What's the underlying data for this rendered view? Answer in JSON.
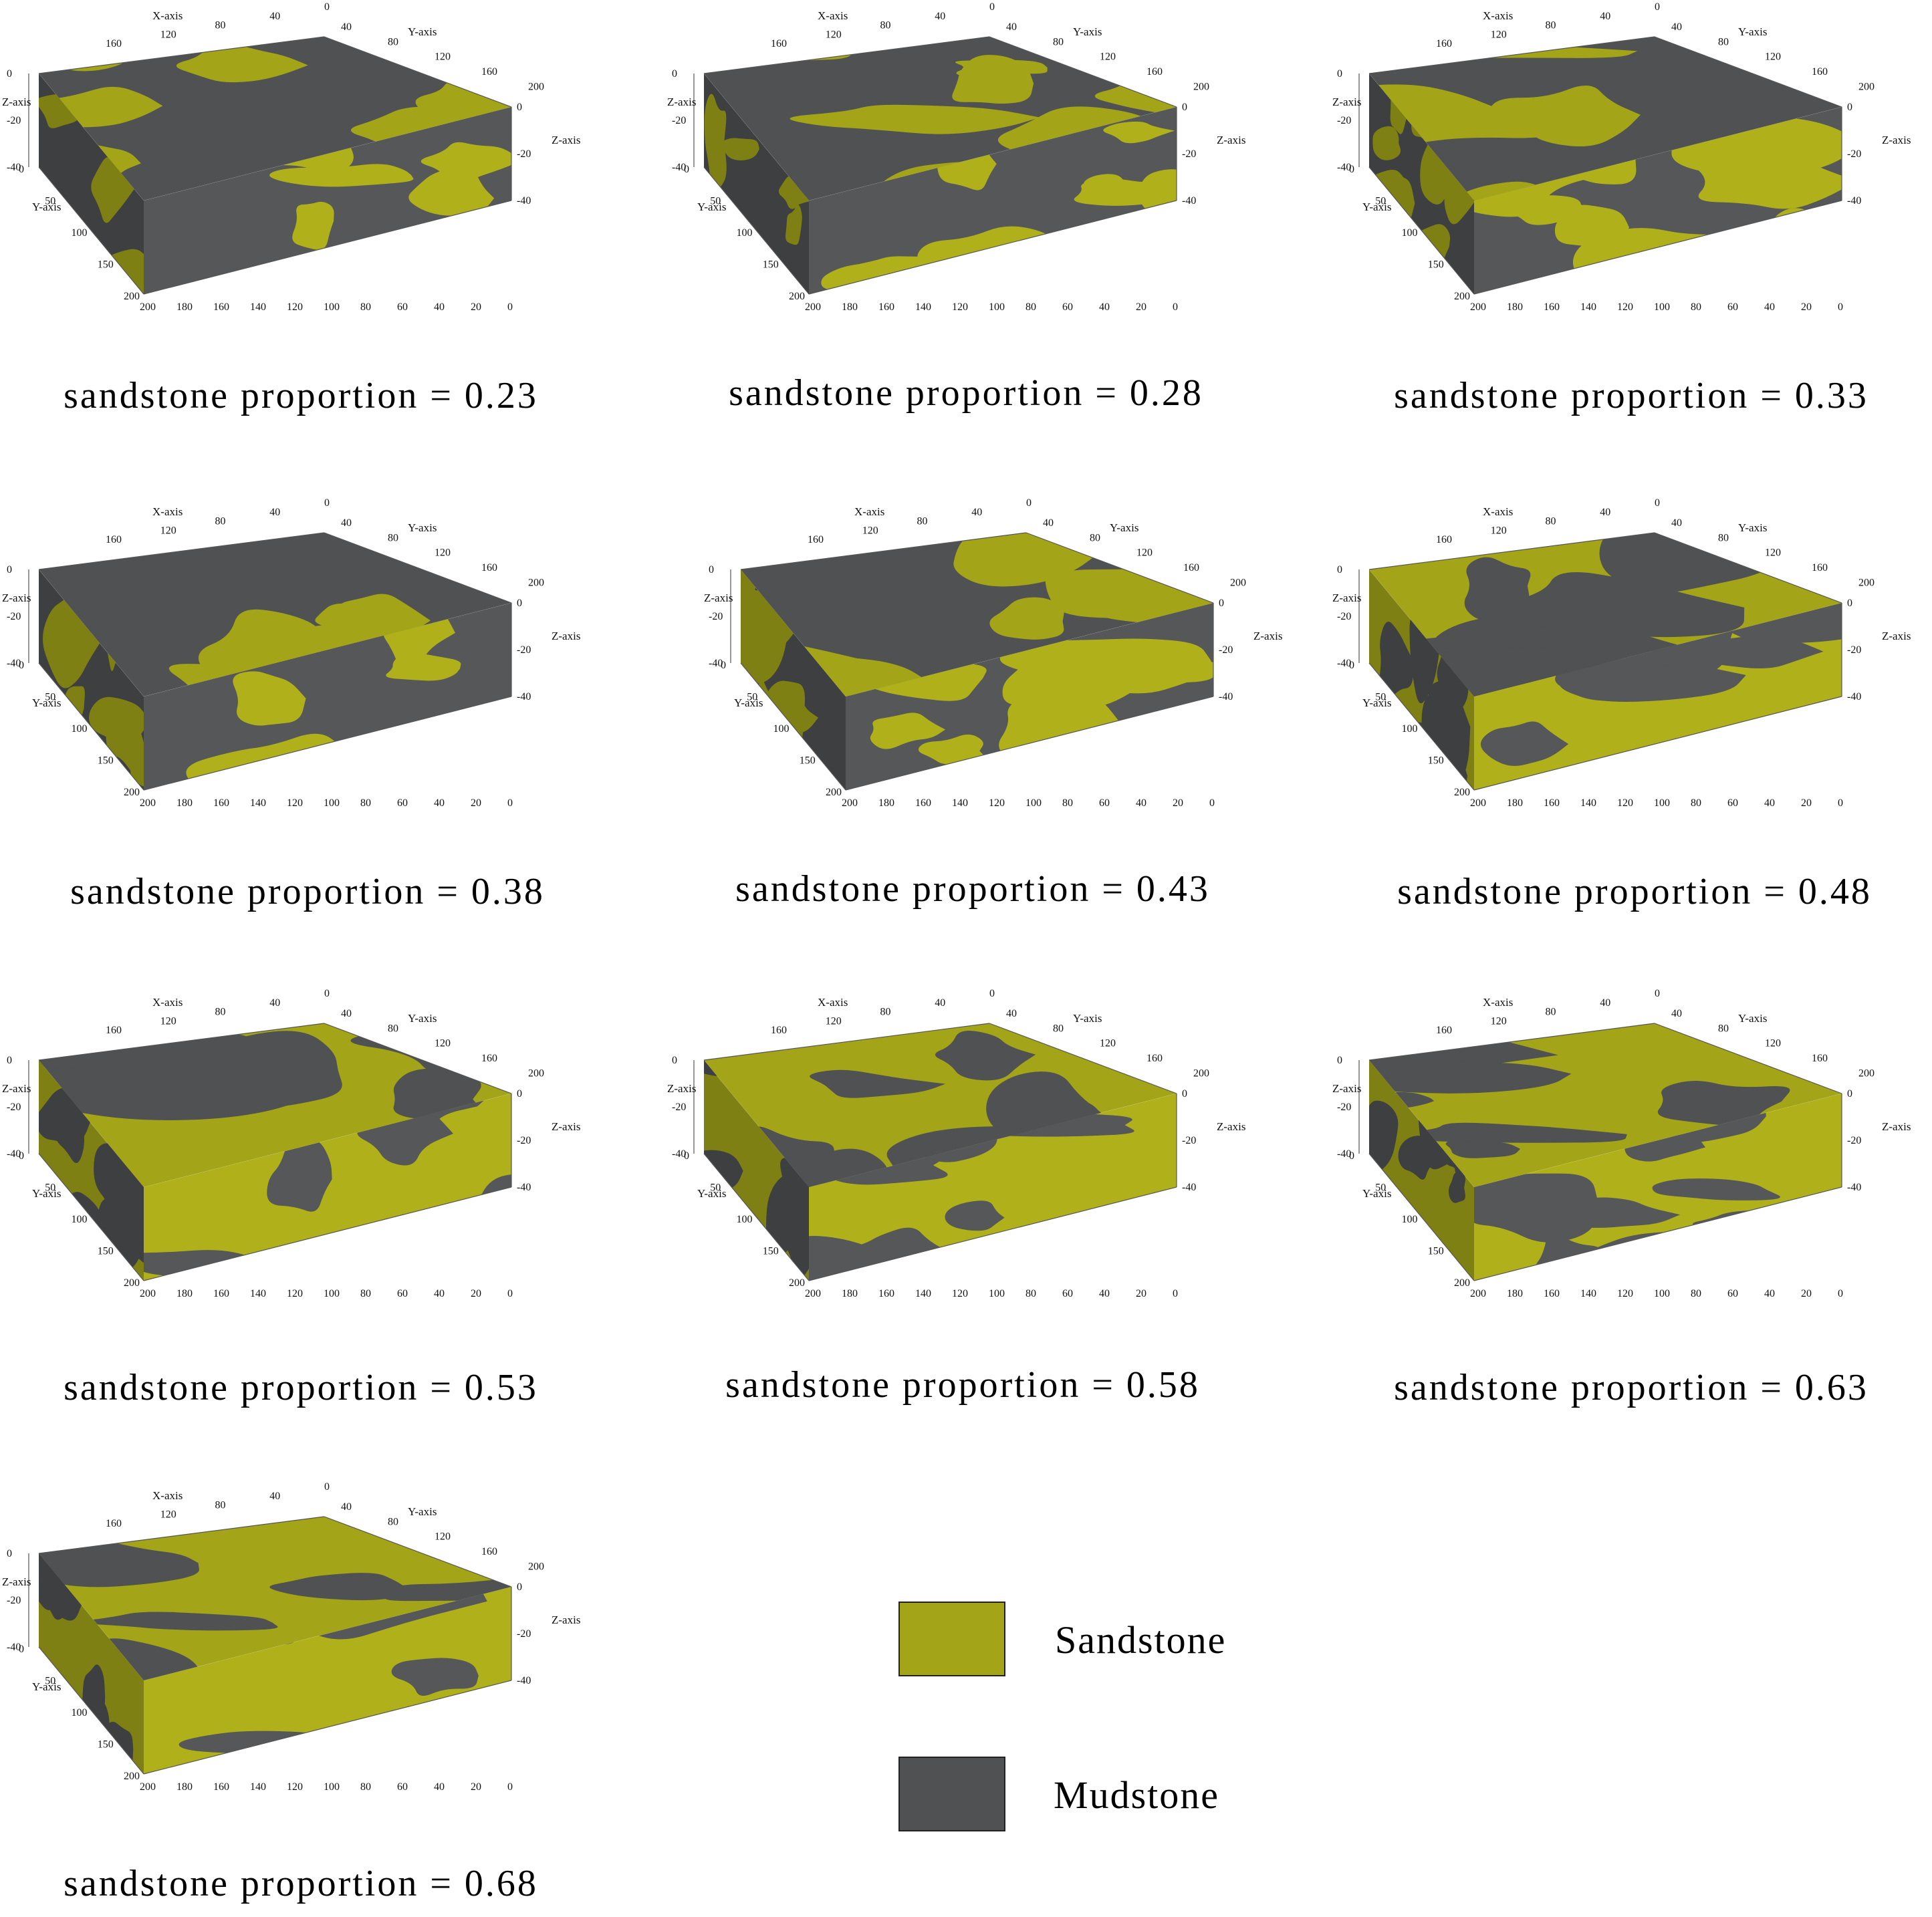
{
  "colors": {
    "sandstone": "#a3a418",
    "mudstone": "#4f5152"
  },
  "axes": {
    "x": "X-axis",
    "y": "Y-axis",
    "z": "Z-axis",
    "x_ticks": [
      "200",
      "180",
      "160",
      "140",
      "120",
      "100",
      "80",
      "60",
      "40",
      "20",
      "0"
    ],
    "y_ticks": [
      "0",
      "50",
      "100",
      "150",
      "200"
    ],
    "z_ticks": [
      "0",
      "-20",
      "-40"
    ],
    "top_x_ticks": [
      "160",
      "120",
      "80",
      "40",
      "0"
    ],
    "top_y_ticks": [
      "40",
      "80",
      "120",
      "160",
      "200"
    ]
  },
  "panels": [
    {
      "caption": "sandstone  proportion = 0.23",
      "proportion": 0.23
    },
    {
      "caption": "sandstone  proportion = 0.28",
      "proportion": 0.28
    },
    {
      "caption": "sandstone  proportion = 0.33",
      "proportion": 0.33
    },
    {
      "caption": "sandstone  proportion = 0.38",
      "proportion": 0.38
    },
    {
      "caption": "sandstone  proportion = 0.43",
      "proportion": 0.43
    },
    {
      "caption": "sandstone  proportion = 0.48",
      "proportion": 0.48
    },
    {
      "caption": "sandstone  proportion = 0.53",
      "proportion": 0.53
    },
    {
      "caption": "sandstone  proportion = 0.58",
      "proportion": 0.58
    },
    {
      "caption": "sandstone  proportion = 0.63",
      "proportion": 0.63
    },
    {
      "caption": "sandstone  proportion = 0.68",
      "proportion": 0.68
    }
  ],
  "legend": {
    "sandstone": "Sandstone",
    "mudstone": "Mudstone"
  }
}
